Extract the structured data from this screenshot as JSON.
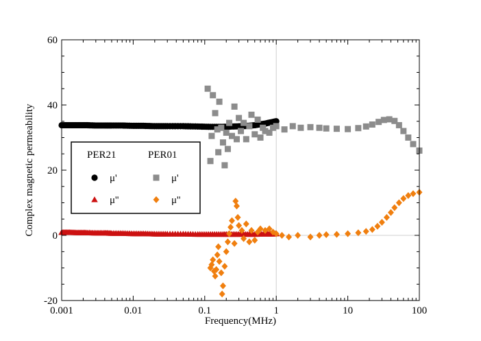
{
  "chart_data": {
    "type": "scatter",
    "title": "",
    "xlabel": "Frequency(MHz)",
    "ylabel": "Complex magnetic permeability",
    "x_scale": "log",
    "xlim": [
      0.001,
      100
    ],
    "ylim": [
      -20,
      60
    ],
    "x_ticks": [
      "0.001",
      "0.01",
      "0.1",
      "1",
      "10",
      "100"
    ],
    "y_ticks": [
      "-20",
      "0",
      "20",
      "40",
      "60"
    ],
    "grid": "vertical line at 1",
    "legend": {
      "placement": "center-left",
      "groups": [
        "PER21",
        "PER01"
      ],
      "entries": [
        {
          "group": "PER21",
          "label": "μ'",
          "marker": "circle",
          "color": "#000000"
        },
        {
          "group": "PER21",
          "label": "μ''",
          "marker": "triangle",
          "color": "#cc1111"
        },
        {
          "group": "PER01",
          "label": "μ'",
          "marker": "square",
          "color": "#8c8c8c"
        },
        {
          "group": "PER01",
          "label": "μ''",
          "marker": "diamond",
          "color": "#f07f0f"
        }
      ]
    },
    "series": [
      {
        "group": "PER21",
        "label": "μ'",
        "marker": "circle",
        "color": "#000000",
        "points": [
          [
            0.001,
            33.8
          ],
          [
            0.0013,
            33.8
          ],
          [
            0.0017,
            33.8
          ],
          [
            0.0022,
            33.8
          ],
          [
            0.003,
            33.7
          ],
          [
            0.004,
            33.7
          ],
          [
            0.005,
            33.7
          ],
          [
            0.007,
            33.7
          ],
          [
            0.01,
            33.6
          ],
          [
            0.014,
            33.6
          ],
          [
            0.02,
            33.5
          ],
          [
            0.03,
            33.5
          ],
          [
            0.05,
            33.5
          ],
          [
            0.08,
            33.4
          ],
          [
            0.12,
            33.3
          ],
          [
            0.18,
            33.3
          ],
          [
            0.25,
            33.4
          ],
          [
            0.35,
            33.5
          ],
          [
            0.5,
            33.8
          ],
          [
            0.7,
            34.3
          ],
          [
            0.9,
            34.8
          ],
          [
            1.0,
            35.0
          ]
        ]
      },
      {
        "group": "PER21",
        "label": "μ''",
        "marker": "triangle",
        "color": "#cc1111",
        "points": [
          [
            0.001,
            0.9
          ],
          [
            0.0013,
            0.9
          ],
          [
            0.0017,
            0.8
          ],
          [
            0.0022,
            0.8
          ],
          [
            0.003,
            0.7
          ],
          [
            0.004,
            0.7
          ],
          [
            0.005,
            0.6
          ],
          [
            0.007,
            0.6
          ],
          [
            0.01,
            0.5
          ],
          [
            0.014,
            0.5
          ],
          [
            0.02,
            0.4
          ],
          [
            0.03,
            0.4
          ],
          [
            0.05,
            0.4
          ],
          [
            0.08,
            0.3
          ],
          [
            0.12,
            0.3
          ],
          [
            0.18,
            0.3
          ],
          [
            0.25,
            0.3
          ],
          [
            0.35,
            0.3
          ],
          [
            0.5,
            0.3
          ],
          [
            0.7,
            0.4
          ],
          [
            0.9,
            0.4
          ],
          [
            1.0,
            0.5
          ]
        ]
      },
      {
        "group": "PER01",
        "label": "μ'",
        "marker": "square",
        "color": "#8c8c8c",
        "points": [
          [
            0.11,
            45.0
          ],
          [
            0.12,
            22.8
          ],
          [
            0.125,
            30.5
          ],
          [
            0.13,
            43.0
          ],
          [
            0.14,
            37.5
          ],
          [
            0.15,
            32.5
          ],
          [
            0.155,
            25.5
          ],
          [
            0.16,
            41.0
          ],
          [
            0.17,
            33.0
          ],
          [
            0.18,
            28.5
          ],
          [
            0.19,
            21.5
          ],
          [
            0.2,
            31.5
          ],
          [
            0.21,
            26.5
          ],
          [
            0.22,
            34.5
          ],
          [
            0.24,
            30.5
          ],
          [
            0.26,
            39.5
          ],
          [
            0.28,
            29.5
          ],
          [
            0.3,
            36.0
          ],
          [
            0.32,
            32.0
          ],
          [
            0.35,
            34.5
          ],
          [
            0.38,
            29.5
          ],
          [
            0.42,
            33.5
          ],
          [
            0.45,
            37.0
          ],
          [
            0.5,
            31.0
          ],
          [
            0.55,
            35.5
          ],
          [
            0.6,
            30.0
          ],
          [
            0.65,
            33.0
          ],
          [
            0.7,
            32.0
          ],
          [
            0.8,
            31.5
          ],
          [
            0.9,
            33.0
          ],
          [
            1.0,
            33.5
          ],
          [
            1.3,
            32.5
          ],
          [
            1.7,
            33.5
          ],
          [
            2.2,
            33.0
          ],
          [
            3.0,
            33.2
          ],
          [
            4.0,
            33.0
          ],
          [
            5.0,
            32.8
          ],
          [
            7.0,
            32.7
          ],
          [
            10,
            32.6
          ],
          [
            14,
            32.9
          ],
          [
            18,
            33.4
          ],
          [
            22,
            34.0
          ],
          [
            27,
            34.8
          ],
          [
            32,
            35.4
          ],
          [
            38,
            35.6
          ],
          [
            45,
            35.1
          ],
          [
            52,
            33.8
          ],
          [
            60,
            32.0
          ],
          [
            70,
            30.0
          ],
          [
            82,
            28.0
          ],
          [
            100,
            26.0
          ]
        ]
      },
      {
        "group": "PER01",
        "label": "μ''",
        "marker": "diamond",
        "color": "#f07f0f",
        "points": [
          [
            0.12,
            -10.0
          ],
          [
            0.125,
            -9.0
          ],
          [
            0.13,
            -7.5
          ],
          [
            0.135,
            -11.0
          ],
          [
            0.14,
            -12.5
          ],
          [
            0.145,
            -10.5
          ],
          [
            0.15,
            -6.0
          ],
          [
            0.155,
            -3.5
          ],
          [
            0.16,
            -8.0
          ],
          [
            0.17,
            -11.5
          ],
          [
            0.175,
            -18.0
          ],
          [
            0.18,
            -15.5
          ],
          [
            0.19,
            -9.5
          ],
          [
            0.2,
            -5.0
          ],
          [
            0.21,
            -2.0
          ],
          [
            0.22,
            0.5
          ],
          [
            0.23,
            2.5
          ],
          [
            0.24,
            4.5
          ],
          [
            0.26,
            -2.5
          ],
          [
            0.27,
            10.5
          ],
          [
            0.28,
            9.0
          ],
          [
            0.29,
            5.5
          ],
          [
            0.3,
            3.0
          ],
          [
            0.33,
            1.5
          ],
          [
            0.35,
            -1.0
          ],
          [
            0.38,
            3.5
          ],
          [
            0.42,
            -2.0
          ],
          [
            0.45,
            1.5
          ],
          [
            0.5,
            -1.5
          ],
          [
            0.55,
            1.0
          ],
          [
            0.6,
            2.0
          ],
          [
            0.7,
            1.5
          ],
          [
            0.8,
            2.0
          ],
          [
            0.9,
            1.0
          ],
          [
            1.0,
            0.5
          ],
          [
            1.2,
            0.0
          ],
          [
            1.5,
            -0.5
          ],
          [
            2.0,
            0.0
          ],
          [
            3.0,
            -0.5
          ],
          [
            4.0,
            0.0
          ],
          [
            5.0,
            0.2
          ],
          [
            7.0,
            0.3
          ],
          [
            10,
            0.5
          ],
          [
            14,
            0.8
          ],
          [
            18,
            1.2
          ],
          [
            22,
            1.8
          ],
          [
            26,
            2.8
          ],
          [
            30,
            4.0
          ],
          [
            35,
            5.5
          ],
          [
            40,
            7.0
          ],
          [
            45,
            8.5
          ],
          [
            52,
            10.0
          ],
          [
            60,
            11.3
          ],
          [
            70,
            12.2
          ],
          [
            82,
            12.8
          ],
          [
            100,
            13.2
          ]
        ]
      }
    ]
  }
}
